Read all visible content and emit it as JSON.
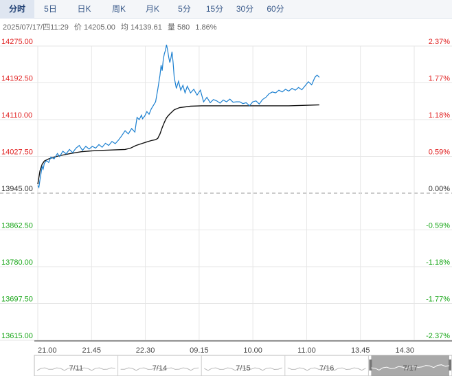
{
  "tabs": [
    {
      "label": "分时",
      "active": true
    },
    {
      "label": "5日",
      "active": false
    },
    {
      "label": "日K",
      "active": false
    },
    {
      "label": "周K",
      "active": false
    },
    {
      "label": "月K",
      "active": false
    },
    {
      "label": "5分",
      "active": false
    },
    {
      "label": "15分",
      "active": false
    },
    {
      "label": "30分",
      "active": false
    },
    {
      "label": "60分",
      "active": false
    }
  ],
  "info": {
    "datetime": "2025/07/17/四11:29",
    "price": "价 14205.00",
    "avg": "均 14139.61",
    "volume": "量 580",
    "change": "1.86%"
  },
  "colors": {
    "up": "#e02020",
    "down": "#16a516",
    "flat": "#333333",
    "price_line": "#1a7fd0",
    "avg_line": "#111111",
    "grid": "#e6e6e6",
    "baseline": "#999999"
  },
  "chart_data": {
    "type": "line",
    "y_left_ticks": [
      "14275.00",
      "14192.50",
      "14110.00",
      "14027.50",
      "13945.00",
      "13862.50",
      "13780.00",
      "13697.50",
      "13615.00"
    ],
    "y_right_ticks": [
      "2.37%",
      "1.77%",
      "1.18%",
      "0.59%",
      "0.00%",
      "-0.59%",
      "-1.18%",
      "-1.77%",
      "-2.37%"
    ],
    "ylim": [
      13615,
      14275
    ],
    "prev_close": 13945,
    "x_ticks": [
      "21.00",
      "21.45",
      "22.30",
      "09.15",
      "10.00",
      "11.00",
      "13.45",
      "14.30"
    ],
    "sessions_total_minutes": 345,
    "price": {
      "minutes": [
        0,
        1,
        2,
        3,
        4,
        5,
        6,
        8,
        10,
        12,
        15,
        18,
        20,
        23,
        26,
        29,
        32,
        35,
        38,
        41,
        44,
        47,
        50,
        53,
        56,
        59,
        62,
        65,
        68,
        71,
        74,
        77,
        80,
        83,
        86,
        89,
        90,
        91,
        93,
        95,
        96,
        98,
        100,
        102,
        104,
        106,
        108,
        110,
        112,
        113,
        114,
        115,
        116,
        117,
        118,
        119,
        120,
        121,
        122,
        123,
        124,
        125,
        127,
        129,
        131,
        133,
        135,
        137,
        140,
        143,
        146,
        149,
        152,
        155,
        158,
        161,
        164,
        167,
        170,
        173,
        176,
        179,
        182,
        185,
        188,
        191,
        194,
        197,
        200,
        203,
        206,
        209,
        212,
        215,
        218,
        221,
        224,
        227,
        230,
        233,
        236,
        239,
        242,
        245,
        248,
        251,
        254,
        256,
        258
      ],
      "values": [
        13962,
        13958,
        13975,
        13990,
        14005,
        13999,
        14012,
        14018,
        14014,
        14026,
        14022,
        14034,
        14027,
        14039,
        14033,
        14043,
        14036,
        14046,
        14052,
        14041,
        14050,
        14044,
        14050,
        14046,
        14054,
        14048,
        14057,
        14052,
        14061,
        14056,
        14064,
        14074,
        14085,
        14078,
        14090,
        14082,
        14100,
        14115,
        14110,
        14120,
        14112,
        14118,
        14128,
        14122,
        14134,
        14142,
        14150,
        14178,
        14210,
        14232,
        14220,
        14245,
        14258,
        14265,
        14278,
        14266,
        14250,
        14238,
        14248,
        14262,
        14238,
        14205,
        14180,
        14196,
        14176,
        14187,
        14170,
        14185,
        14170,
        14178,
        14165,
        14176,
        14150,
        14160,
        14148,
        14155,
        14152,
        14147,
        14154,
        14150,
        14156,
        14149,
        14150,
        14150,
        14146,
        14148,
        14141,
        14150,
        14152,
        14145,
        14155,
        14160,
        14168,
        14172,
        14170,
        14176,
        14172,
        14178,
        14174,
        14180,
        14176,
        14182,
        14177,
        14186,
        14195,
        14188,
        14205,
        14210,
        14205
      ]
    },
    "avg": {
      "minutes": [
        0,
        2,
        4,
        6,
        10,
        15,
        20,
        30,
        40,
        50,
        60,
        70,
        80,
        85,
        90,
        95,
        100,
        104,
        108,
        110,
        112,
        114,
        116,
        118,
        120,
        122,
        125,
        130,
        140,
        150,
        170,
        200,
        230,
        258
      ],
      "values": [
        13965,
        13995,
        14010,
        14017,
        14022,
        14026,
        14029,
        14034,
        14038,
        14040,
        14041,
        14042,
        14043,
        14046,
        14052,
        14056,
        14060,
        14063,
        14065,
        14068,
        14078,
        14092,
        14104,
        14114,
        14120,
        14125,
        14132,
        14137,
        14140,
        14141,
        14141,
        14141,
        14141,
        14143
      ]
    },
    "navigator": {
      "dates": [
        "7/11",
        "7/14",
        "7/15",
        "7/16",
        "7/17"
      ],
      "selected": "7/17"
    }
  }
}
